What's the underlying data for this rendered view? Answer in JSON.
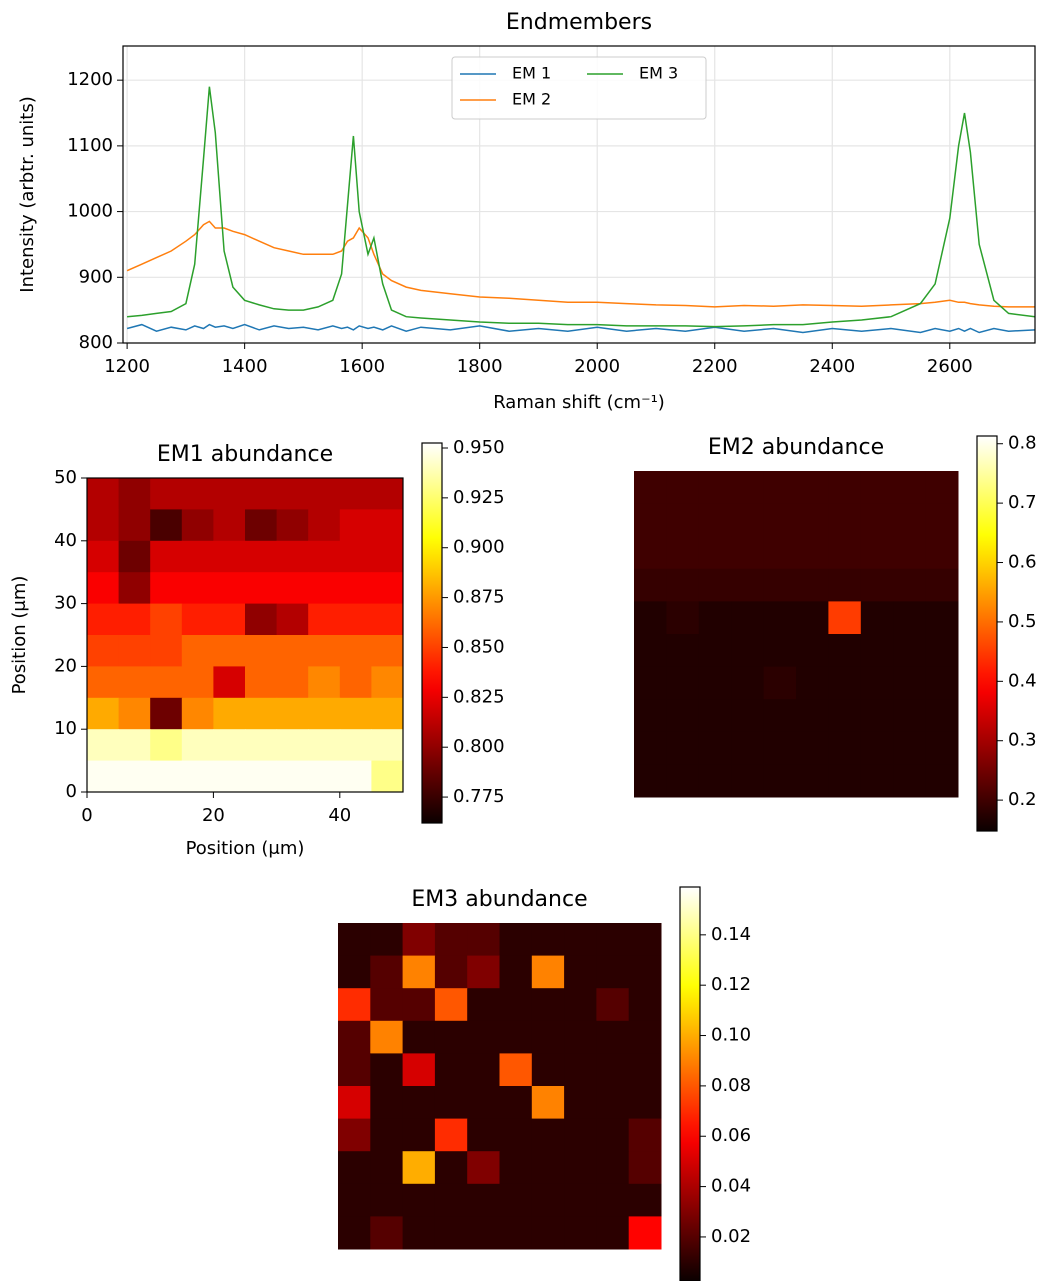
{
  "chart_data": [
    {
      "type": "line",
      "title": "Endmembers",
      "xlabel": "Raman shift (cm⁻¹)",
      "ylabel": "Intensity (arbtr. units)",
      "x": [
        1200,
        1225,
        1250,
        1275,
        1300,
        1315,
        1330,
        1340,
        1350,
        1365,
        1380,
        1400,
        1425,
        1450,
        1475,
        1500,
        1525,
        1550,
        1565,
        1575,
        1585,
        1595,
        1610,
        1620,
        1635,
        1650,
        1675,
        1700,
        1750,
        1800,
        1850,
        1900,
        1950,
        2000,
        2050,
        2100,
        2150,
        2200,
        2250,
        2300,
        2350,
        2400,
        2450,
        2500,
        2550,
        2575,
        2600,
        2615,
        2625,
        2635,
        2650,
        2675,
        2700,
        2745
      ],
      "series": [
        {
          "name": "EM 1",
          "color": "#1f77b4",
          "values": [
            822,
            828,
            818,
            824,
            820,
            826,
            822,
            828,
            824,
            826,
            822,
            828,
            820,
            826,
            822,
            824,
            820,
            826,
            822,
            824,
            820,
            826,
            822,
            824,
            820,
            826,
            818,
            824,
            820,
            826,
            818,
            822,
            818,
            824,
            818,
            822,
            818,
            824,
            818,
            822,
            816,
            822,
            818,
            822,
            816,
            822,
            818,
            822,
            818,
            822,
            816,
            822,
            818,
            820
          ]
        },
        {
          "name": "EM 2",
          "color": "#ff7f0e",
          "values": [
            910,
            920,
            930,
            940,
            955,
            965,
            980,
            985,
            975,
            975,
            970,
            965,
            955,
            945,
            940,
            935,
            935,
            935,
            940,
            955,
            960,
            975,
            960,
            935,
            905,
            895,
            885,
            880,
            875,
            870,
            868,
            865,
            862,
            862,
            860,
            858,
            857,
            855,
            857,
            856,
            858,
            857,
            856,
            858,
            860,
            862,
            865,
            862,
            862,
            860,
            858,
            856,
            855,
            855
          ]
        },
        {
          "name": "EM 3",
          "color": "#2ca02c",
          "values": [
            840,
            842,
            845,
            848,
            860,
            920,
            1080,
            1190,
            1120,
            940,
            885,
            865,
            858,
            852,
            850,
            850,
            855,
            865,
            905,
            1010,
            1115,
            1000,
            935,
            960,
            890,
            850,
            840,
            838,
            835,
            832,
            830,
            830,
            828,
            828,
            826,
            826,
            826,
            825,
            826,
            828,
            828,
            832,
            835,
            840,
            860,
            890,
            990,
            1100,
            1150,
            1090,
            950,
            865,
            845,
            840
          ]
        }
      ],
      "xlim": [
        1193,
        2745
      ],
      "ylim": [
        800,
        1252
      ],
      "xticks": [
        1200,
        1400,
        1600,
        1800,
        2000,
        2200,
        2400,
        2600
      ],
      "yticks": [
        800,
        900,
        1000,
        1100,
        1200
      ],
      "grid": true,
      "legend": "upper center",
      "legend_ncol": 2
    },
    {
      "type": "heatmap",
      "title": "EM1 abundance",
      "xlabel": "Position (μm)",
      "ylabel": "Position (μm)",
      "colormap": "hot",
      "xlim": [
        0,
        50
      ],
      "ylim": [
        0,
        50
      ],
      "xticks": [
        0,
        20,
        40
      ],
      "yticks": [
        0,
        10,
        20,
        30,
        40,
        50
      ],
      "clim": [
        0.762,
        0.9525
      ],
      "cticks": [
        {
          "value": 0.775,
          "label": "0.775"
        },
        {
          "value": 0.8,
          "label": "0.800"
        },
        {
          "value": 0.825,
          "label": "0.825"
        },
        {
          "value": 0.85,
          "label": "0.850"
        },
        {
          "value": 0.875,
          "label": "0.875"
        },
        {
          "value": 0.9,
          "label": "0.900"
        },
        {
          "value": 0.925,
          "label": "0.925"
        },
        {
          "value": 0.95,
          "label": "0.950"
        }
      ],
      "z": [
        [
          0.81,
          0.8,
          0.81,
          0.81,
          0.81,
          0.81,
          0.81,
          0.81,
          0.81,
          0.81
        ],
        [
          0.81,
          0.8,
          0.78,
          0.8,
          0.81,
          0.79,
          0.8,
          0.81,
          0.82,
          0.82
        ],
        [
          0.82,
          0.79,
          0.82,
          0.82,
          0.82,
          0.82,
          0.82,
          0.82,
          0.82,
          0.82
        ],
        [
          0.83,
          0.8,
          0.83,
          0.83,
          0.83,
          0.83,
          0.83,
          0.83,
          0.83,
          0.83
        ],
        [
          0.84,
          0.84,
          0.85,
          0.84,
          0.84,
          0.8,
          0.81,
          0.84,
          0.84,
          0.84
        ],
        [
          0.85,
          0.85,
          0.85,
          0.86,
          0.86,
          0.86,
          0.86,
          0.86,
          0.86,
          0.86
        ],
        [
          0.86,
          0.86,
          0.86,
          0.86,
          0.82,
          0.86,
          0.86,
          0.87,
          0.86,
          0.87
        ],
        [
          0.88,
          0.87,
          0.79,
          0.87,
          0.88,
          0.88,
          0.88,
          0.88,
          0.88,
          0.88
        ],
        [
          0.94,
          0.94,
          0.93,
          0.94,
          0.94,
          0.94,
          0.94,
          0.94,
          0.94,
          0.94
        ],
        [
          0.95,
          0.95,
          0.95,
          0.95,
          0.95,
          0.95,
          0.95,
          0.95,
          0.95,
          0.93
        ]
      ]
    },
    {
      "type": "heatmap",
      "title": "EM2 abundance",
      "colormap": "hot",
      "clim": [
        0.148,
        0.813
      ],
      "cticks": [
        0.2,
        0.3,
        0.4,
        0.5,
        0.6,
        0.7,
        0.8
      ],
      "z": [
        [
          0.2,
          0.2,
          0.2,
          0.2,
          0.2,
          0.2,
          0.2,
          0.2,
          0.2,
          0.2
        ],
        [
          0.2,
          0.2,
          0.2,
          0.2,
          0.2,
          0.2,
          0.2,
          0.2,
          0.2,
          0.2
        ],
        [
          0.2,
          0.2,
          0.2,
          0.2,
          0.2,
          0.2,
          0.2,
          0.2,
          0.2,
          0.2
        ],
        [
          0.19,
          0.19,
          0.19,
          0.19,
          0.19,
          0.19,
          0.19,
          0.19,
          0.19,
          0.19
        ],
        [
          0.17,
          0.18,
          0.17,
          0.17,
          0.17,
          0.17,
          0.45,
          0.17,
          0.17,
          0.17
        ],
        [
          0.17,
          0.17,
          0.17,
          0.17,
          0.17,
          0.17,
          0.17,
          0.17,
          0.17,
          0.17
        ],
        [
          0.17,
          0.17,
          0.17,
          0.17,
          0.18,
          0.17,
          0.17,
          0.17,
          0.17,
          0.17
        ],
        [
          0.17,
          0.17,
          0.17,
          0.17,
          0.17,
          0.17,
          0.17,
          0.17,
          0.17,
          0.17
        ],
        [
          0.17,
          0.17,
          0.17,
          0.17,
          0.17,
          0.17,
          0.17,
          0.17,
          0.17,
          0.17
        ],
        [
          0.17,
          0.17,
          0.17,
          0.17,
          0.17,
          0.17,
          0.17,
          0.17,
          0.17,
          0.17
        ]
      ]
    },
    {
      "type": "heatmap",
      "title": "EM3 abundance",
      "colormap": "hot",
      "clim": [
        0.0025,
        0.159
      ],
      "cticks": [
        0.02,
        0.04,
        0.06,
        0.08,
        {
          "value": 0.1,
          "label": "0.10"
        },
        0.12,
        0.14
      ],
      "z": [
        [
          0.01,
          0.01,
          0.03,
          0.02,
          0.02,
          0.01,
          0.01,
          0.01,
          0.01,
          0.01
        ],
        [
          0.01,
          0.02,
          0.09,
          0.02,
          0.03,
          0.01,
          0.09,
          0.01,
          0.01,
          0.01
        ],
        [
          0.07,
          0.02,
          0.02,
          0.08,
          0.01,
          0.01,
          0.01,
          0.01,
          0.02,
          0.01
        ],
        [
          0.02,
          0.09,
          0.01,
          0.01,
          0.01,
          0.01,
          0.01,
          0.01,
          0.01,
          0.01
        ],
        [
          0.02,
          0.01,
          0.05,
          0.01,
          0.01,
          0.08,
          0.01,
          0.01,
          0.01,
          0.01
        ],
        [
          0.05,
          0.01,
          0.01,
          0.01,
          0.01,
          0.01,
          0.09,
          0.01,
          0.01,
          0.01
        ],
        [
          0.03,
          0.01,
          0.01,
          0.07,
          0.01,
          0.01,
          0.01,
          0.01,
          0.01,
          0.02
        ],
        [
          0.01,
          0.01,
          0.1,
          0.01,
          0.03,
          0.01,
          0.01,
          0.01,
          0.01,
          0.02
        ],
        [
          0.01,
          0.01,
          0.01,
          0.01,
          0.01,
          0.01,
          0.01,
          0.01,
          0.01,
          0.01
        ],
        [
          0.01,
          0.02,
          0.01,
          0.01,
          0.01,
          0.01,
          0.01,
          0.01,
          0.01,
          0.06
        ]
      ]
    }
  ]
}
